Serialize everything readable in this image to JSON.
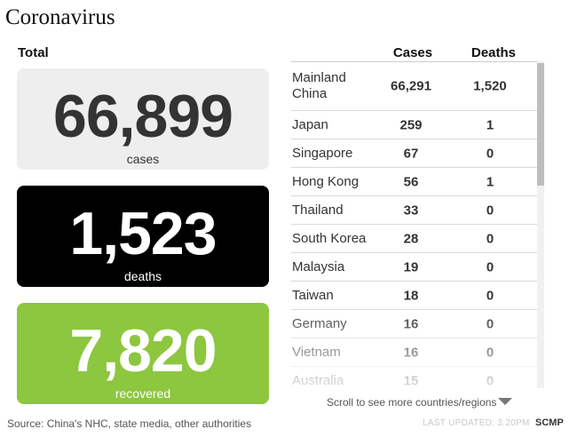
{
  "header": {
    "title": "Coronavirus",
    "total_label": "Total"
  },
  "cards": {
    "cases": {
      "value": "66,899",
      "label": "cases"
    },
    "deaths": {
      "value": "1,523",
      "label": "deaths"
    },
    "recovered": {
      "value": "7,820",
      "label": "recovered"
    }
  },
  "table": {
    "columns": {
      "cases": "Cases",
      "deaths": "Deaths"
    },
    "rows": [
      {
        "name": "Mainland China",
        "cases": "66,291",
        "deaths": "1,520"
      },
      {
        "name": "Japan",
        "cases": "259",
        "deaths": "1"
      },
      {
        "name": "Singapore",
        "cases": "67",
        "deaths": "0"
      },
      {
        "name": "Hong Kong",
        "cases": "56",
        "deaths": "1"
      },
      {
        "name": "Thailand",
        "cases": "33",
        "deaths": "0"
      },
      {
        "name": "South Korea",
        "cases": "28",
        "deaths": "0"
      },
      {
        "name": "Malaysia",
        "cases": "19",
        "deaths": "0"
      },
      {
        "name": "Taiwan",
        "cases": "18",
        "deaths": "0"
      },
      {
        "name": "Germany",
        "cases": "16",
        "deaths": "0"
      },
      {
        "name": "Vietnam",
        "cases": "16",
        "deaths": "0"
      },
      {
        "name": "Australia",
        "cases": "15",
        "deaths": "0"
      }
    ],
    "scroll_hint": "Scroll to see more countries/regions"
  },
  "footer": {
    "source": "Source: China's NHC, state media, other authorities",
    "updated": "LAST UPDATED: 3.20PM",
    "brand": "SCMP"
  },
  "colors": {
    "recovered": "#8dc63f",
    "deaths_bg": "#000000",
    "cases_bg": "#eeeeee"
  }
}
